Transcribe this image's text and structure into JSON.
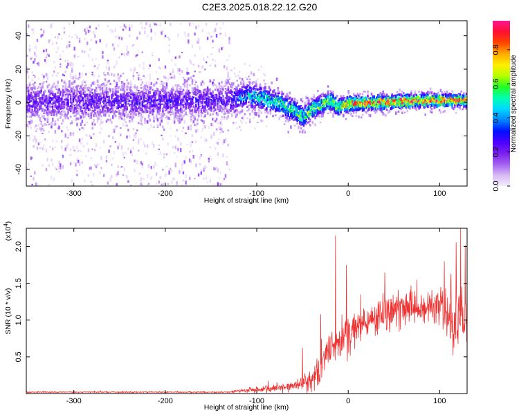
{
  "title": "C2E3.2025.018.22.12.G20",
  "chart_data": [
    {
      "type": "heatmap",
      "xlabel": "Height of straight line (km)",
      "ylabel": "Frequency (Hz)",
      "xlim": [
        -352,
        130
      ],
      "ylim": [
        -50,
        49
      ],
      "xticks": [
        -300,
        -200,
        -100,
        0,
        100
      ],
      "yticks": [
        -40,
        -20,
        0,
        20,
        40
      ],
      "colorbar": {
        "label": "Normalized spectral amplitude",
        "range": [
          0.0,
          0.97
        ],
        "ticks": [
          0.0,
          0.2,
          0.4,
          0.6,
          0.8
        ],
        "colors": [
          "#f4ecfb",
          "#d6b8f5",
          "#a35ff0",
          "#7a1ef0",
          "#4a00ff",
          "#0011ff",
          "#0088ff",
          "#00d8ff",
          "#00ffb0",
          "#22ff22",
          "#b8ff00",
          "#ffee00",
          "#ffaa00",
          "#ff4400",
          "#ff1030",
          "#ff1493"
        ]
      },
      "center_line": [
        [
          -352,
          1
        ],
        [
          -130,
          2
        ],
        [
          -110,
          5
        ],
        [
          -90,
          3
        ],
        [
          -75,
          0
        ],
        [
          -60,
          -4
        ],
        [
          -50,
          -8
        ],
        [
          -40,
          -3
        ],
        [
          -20,
          2
        ],
        [
          -12,
          -2
        ],
        [
          0,
          0
        ],
        [
          40,
          1
        ],
        [
          80,
          2
        ],
        [
          130,
          2
        ]
      ],
      "band_halfwidth": [
        [
          -352,
          12
        ],
        [
          -130,
          10
        ],
        [
          -100,
          8
        ],
        [
          -50,
          7
        ],
        [
          0,
          5
        ],
        [
          130,
          4
        ]
      ],
      "peak_amplitude": [
        [
          -352,
          0.25
        ],
        [
          -130,
          0.28
        ],
        [
          -110,
          0.5
        ],
        [
          -60,
          0.6
        ],
        [
          -20,
          0.65
        ],
        [
          0,
          0.85
        ],
        [
          40,
          0.9
        ],
        [
          130,
          0.9
        ]
      ]
    },
    {
      "type": "line",
      "xlabel": "Height of straight line (km)",
      "ylabel": "SNR (10 * v/v)",
      "y_multiplier": "(x10",
      "y_multiplier_exp": "4",
      "y_multiplier_close": ")",
      "xlim": [
        -352,
        130
      ],
      "ylim": [
        0.0,
        2.25
      ],
      "xticks": [
        -300,
        -200,
        -100,
        0,
        100
      ],
      "yticks": [
        0.5,
        1.0,
        1.5,
        2.0
      ],
      "color": "#ee3333",
      "series": [
        {
          "envelope": [
            [
              -352,
              0.02
            ],
            [
              -130,
              0.02
            ],
            [
              -100,
              0.06
            ],
            [
              -60,
              0.1
            ],
            [
              -40,
              0.2
            ],
            [
              -30,
              0.35
            ],
            [
              -25,
              0.55
            ],
            [
              -15,
              0.65
            ],
            [
              0,
              0.8
            ],
            [
              20,
              1.0
            ],
            [
              40,
              1.1
            ],
            [
              60,
              1.15
            ],
            [
              80,
              1.2
            ],
            [
              100,
              1.2
            ],
            [
              110,
              1.0
            ],
            [
              115,
              1.0
            ],
            [
              125,
              1.1
            ],
            [
              130,
              1.1
            ]
          ],
          "noise": [
            [
              -352,
              0.01
            ],
            [
              -130,
              0.01
            ],
            [
              -100,
              0.05
            ],
            [
              -60,
              0.08
            ],
            [
              -40,
              0.18
            ],
            [
              -25,
              0.3
            ],
            [
              0,
              0.3
            ],
            [
              50,
              0.28
            ],
            [
              100,
              0.3
            ],
            [
              110,
              0.55
            ],
            [
              130,
              0.5
            ]
          ],
          "spikes": [
            [
              -14,
              2.15
            ],
            [
              -50,
              0.62
            ],
            [
              -30,
              1.08
            ],
            [
              -2,
              1.75
            ],
            [
              40,
              1.65
            ],
            [
              75,
              1.55
            ],
            [
              105,
              1.8
            ],
            [
              112,
              1.52
            ],
            [
              118,
              2.06
            ],
            [
              123,
              2.25
            ],
            [
              128,
              2.02
            ]
          ]
        }
      ]
    }
  ]
}
